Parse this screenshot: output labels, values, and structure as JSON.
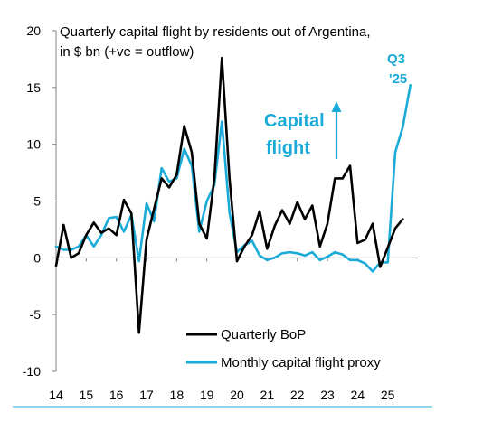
{
  "chart_data": {
    "type": "line",
    "title_lines": [
      "Quarterly capital flight by residents out of Argentina,",
      "in $ bn (+ve = outflow)"
    ],
    "ylim": [
      -10,
      20
    ],
    "yticks": [
      "20",
      "15",
      "10",
      "5",
      "0",
      "-5",
      "-10"
    ],
    "ytick_values": [
      20,
      15,
      10,
      5,
      0,
      -5,
      -10
    ],
    "xlim": [
      2014,
      2026
    ],
    "xticks": [
      "14",
      "15",
      "16",
      "17",
      "18",
      "19",
      "20",
      "21",
      "22",
      "23",
      "24",
      "25"
    ],
    "xtick_values": [
      2014,
      2015,
      2016,
      2017,
      2018,
      2019,
      2020,
      2021,
      2022,
      2023,
      2024,
      2025
    ],
    "colors": {
      "quarterly": "#000000",
      "monthly": "#1aabd8",
      "axis": "#808080"
    },
    "annotations": {
      "capital_flight": [
        "Capital",
        "flight"
      ],
      "q3_label": [
        "Q3",
        "'25"
      ]
    },
    "legend": {
      "placement": "bottom-center",
      "entries": [
        "Quarterly BoP",
        "Monthly capital flight proxy"
      ]
    },
    "series": [
      {
        "name": "Quarterly BoP",
        "color": "#000000",
        "x": [
          2014.0,
          2014.25,
          2014.5,
          2014.75,
          2015.0,
          2015.25,
          2015.5,
          2015.75,
          2016.0,
          2016.25,
          2016.5,
          2016.75,
          2017.0,
          2017.25,
          2017.5,
          2017.75,
          2018.0,
          2018.25,
          2018.5,
          2018.75,
          2019.0,
          2019.25,
          2019.5,
          2019.75,
          2020.0,
          2020.25,
          2020.5,
          2020.75,
          2021.0,
          2021.25,
          2021.5,
          2021.75,
          2022.0,
          2022.25,
          2022.5,
          2022.75,
          2023.0,
          2023.25,
          2023.5,
          2023.75,
          2024.0,
          2024.25,
          2024.5,
          2024.75,
          2025.0,
          2025.25,
          2025.5
        ],
        "values": [
          -0.7,
          2.9,
          0.0,
          0.4,
          2.0,
          3.1,
          2.2,
          2.6,
          2.0,
          5.1,
          3.9,
          -6.6,
          1.6,
          4.3,
          7.0,
          6.2,
          7.3,
          11.6,
          9.3,
          3.0,
          1.7,
          7.0,
          17.6,
          7.0,
          -0.3,
          1.0,
          2.0,
          4.1,
          0.8,
          2.8,
          4.2,
          3.0,
          4.9,
          3.4,
          4.6,
          1.0,
          3.0,
          7.0,
          7.0,
          8.1,
          1.3,
          1.6,
          3.0,
          -0.8,
          0.9,
          2.6,
          3.4
        ]
      },
      {
        "name": "Monthly capital flight proxy",
        "color": "#1aabd8",
        "x": [
          2014.0,
          2014.25,
          2014.5,
          2014.75,
          2015.0,
          2015.25,
          2015.5,
          2015.75,
          2016.0,
          2016.25,
          2016.5,
          2016.75,
          2017.0,
          2017.25,
          2017.5,
          2017.75,
          2018.0,
          2018.25,
          2018.5,
          2018.75,
          2019.0,
          2019.25,
          2019.5,
          2019.75,
          2020.0,
          2020.25,
          2020.5,
          2020.75,
          2021.0,
          2021.25,
          2021.5,
          2021.75,
          2022.0,
          2022.25,
          2022.5,
          2022.75,
          2023.0,
          2023.25,
          2023.5,
          2023.75,
          2024.0,
          2024.25,
          2024.5,
          2024.75,
          2025.0,
          2025.25,
          2025.5,
          2025.75
        ],
        "values": [
          1.0,
          0.7,
          0.7,
          1.0,
          2.0,
          1.0,
          2.0,
          3.5,
          3.6,
          2.3,
          3.8,
          -0.3,
          4.8,
          3.2,
          7.9,
          6.7,
          7.0,
          9.6,
          8.1,
          2.3,
          5.0,
          6.4,
          12.0,
          4.0,
          0.5,
          1.1,
          1.5,
          0.2,
          -0.2,
          0.0,
          0.4,
          0.5,
          0.4,
          0.2,
          0.5,
          -0.2,
          0.1,
          0.5,
          0.3,
          -0.2,
          -0.2,
          -0.5,
          -1.2,
          -0.4,
          -0.4,
          9.3,
          11.5,
          15.2
        ]
      }
    ]
  }
}
